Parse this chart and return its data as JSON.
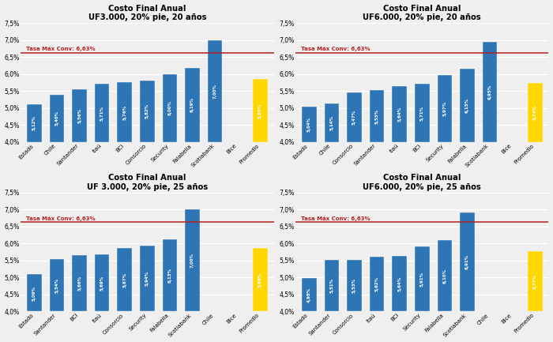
{
  "charts": [
    {
      "title": "Costo Final Anual\nUF3.000, 20% pie, 20 años",
      "banks": [
        "Estado",
        "Chile",
        "Santander",
        "Itaú",
        "BCI",
        "Consorcio",
        "Security",
        "Falabella",
        "Scotiabank",
        "Bice",
        "Promedio"
      ],
      "values": [
        5.12,
        5.4,
        5.56,
        5.71,
        5.76,
        5.82,
        6.0,
        6.19,
        7.0,
        null,
        5.85
      ],
      "labels": [
        "5,12%",
        "5,40%",
        "5,56%",
        "5,71%",
        "5,76%",
        "5,82%",
        "6,00%",
        "6,19%",
        "7,00%",
        "",
        "5,85%"
      ],
      "tasa_label": "Tasa Máx Conv: 6,63%",
      "tasa_value": 6.63
    },
    {
      "title": "Costo Final Anual\nUF6.000, 20% pie, 20 años",
      "banks": [
        "Estado",
        "Chile",
        "Consorcio",
        "Santander",
        "Itaú",
        "BCI",
        "Security",
        "Falabella",
        "Scotiabank",
        "Bice",
        "Promedio"
      ],
      "values": [
        5.04,
        5.14,
        5.47,
        5.53,
        5.64,
        5.71,
        5.97,
        6.15,
        6.95,
        null,
        5.74
      ],
      "labels": [
        "5,04%",
        "5,14%",
        "5,47%",
        "5,53%",
        "5,64%",
        "5,71%",
        "5,97%",
        "6,15%",
        "6,95%",
        "",
        "5,74%"
      ],
      "tasa_label": "Tasa Máx Conv: 6,63%",
      "tasa_value": 6.63
    },
    {
      "title": "Costo Final Anual\nUF 3.000, 20% pie, 25 años",
      "banks": [
        "Estado",
        "Santander",
        "BCI",
        "Itaú",
        "Consorcio",
        "Security",
        "Falabella",
        "Scotiabank",
        "Chile",
        "Bice",
        "Promedio"
      ],
      "values": [
        5.09,
        5.54,
        5.66,
        5.69,
        5.87,
        5.94,
        6.13,
        7.0,
        null,
        null,
        5.86
      ],
      "labels": [
        "5,09%",
        "5,54%",
        "5,66%",
        "5,69%",
        "5,87%",
        "5,94%",
        "6,13%",
        "7,00%",
        "",
        "",
        "5,86%"
      ],
      "tasa_label": "Tasa Máx Conv: 6,63%",
      "tasa_value": 6.63
    },
    {
      "title": "Costo Final Anual\nUF6.000, 20% pie, 25 años",
      "banks": [
        "Estado",
        "Santander",
        "Consorcio",
        "Itaú",
        "BCI",
        "Security",
        "Falabella",
        "Scotiabank",
        "Chile",
        "Bice",
        "Promedio"
      ],
      "values": [
        4.98,
        5.51,
        5.53,
        5.62,
        5.64,
        5.91,
        6.1,
        6.91,
        null,
        null,
        5.77
      ],
      "labels": [
        "4,98%",
        "5,51%",
        "5,53%",
        "5,62%",
        "5,64%",
        "5,91%",
        "6,10%",
        "6,91%",
        "",
        "",
        "5,77%"
      ],
      "tasa_label": "Tasa Máx Conv: 6,63%",
      "tasa_value": 6.63
    }
  ],
  "bar_color": "#2E75B6",
  "promedio_color": "#FFD700",
  "tasa_color": "#B22222",
  "bg_color": "#EFEFEF",
  "ylim": [
    4.0,
    7.5
  ],
  "yticks": [
    4.0,
    4.5,
    5.0,
    5.5,
    6.0,
    6.5,
    7.0,
    7.5
  ],
  "ytick_labels": [
    "4,0%",
    "4,5%",
    "5,0%",
    "5,5%",
    "6,0%",
    "6,5%",
    "7,0%",
    "7,5%"
  ]
}
